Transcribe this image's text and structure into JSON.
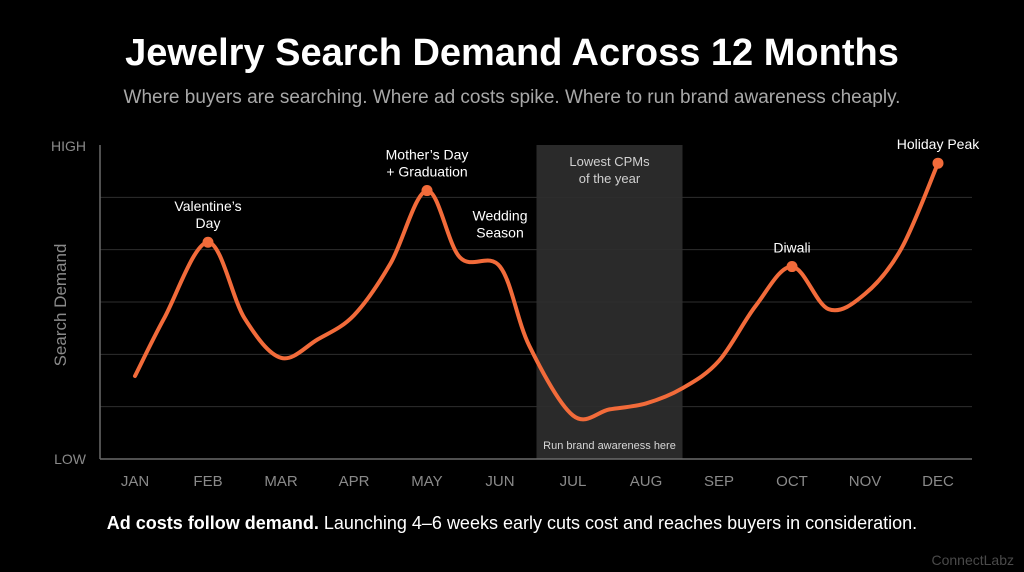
{
  "title": "Jewelry Search Demand Across 12 Months",
  "subtitle": "Where buyers are searching. Where ad costs spike. Where to run brand awareness cheaply.",
  "footnote": {
    "bold": "Ad costs follow demand.",
    "rest": " Launching 4–6 weeks early cuts cost and reaches buyers in consideration."
  },
  "watermark": "ConnectLabz",
  "colors": {
    "background": "#000000",
    "line": "#f26b3a",
    "grid": "#2e2e2e",
    "axis_text": "#8a8a8a",
    "band": "#2a2a2a"
  },
  "chart_data": {
    "type": "line",
    "title": "Jewelry Search Demand Across 12 Months",
    "subtitle": "Where buyers are searching. Where ad costs spike. Where to run brand awareness cheaply.",
    "ylabel": "Search Demand",
    "y_tick_labels": [
      "HIGH",
      "LOW"
    ],
    "ylim": [
      0,
      100
    ],
    "categories": [
      "JAN",
      "FEB",
      "MAR",
      "APR",
      "MAY",
      "JUN",
      "JUL",
      "AUG",
      "SEP",
      "OCT",
      "NOV",
      "DEC"
    ],
    "grid": true,
    "series": [
      {
        "points": [
          [
            0,
            25
          ],
          [
            0.4,
            44
          ],
          [
            1,
            69
          ],
          [
            1.5,
            44
          ],
          [
            2,
            31
          ],
          [
            2.5,
            37
          ],
          [
            3,
            45
          ],
          [
            3.5,
            62
          ],
          [
            4,
            86
          ],
          [
            4.45,
            64
          ],
          [
            5,
            61
          ],
          [
            5.4,
            35
          ],
          [
            6,
            12
          ],
          [
            6.5,
            14
          ],
          [
            7,
            16
          ],
          [
            7.5,
            21
          ],
          [
            8,
            30
          ],
          [
            8.5,
            48
          ],
          [
            9,
            61
          ],
          [
            9.5,
            47
          ],
          [
            10,
            52
          ],
          [
            10.5,
            67
          ],
          [
            11,
            95
          ]
        ]
      }
    ],
    "markers": [
      {
        "x": 1,
        "y": 69,
        "label_lines": [
          "Valentine’s",
          "Day"
        ]
      },
      {
        "x": 4,
        "y": 86,
        "label_lines": [
          "Mother’s Day",
          "+ Graduation"
        ]
      },
      {
        "x": 9,
        "y": 61,
        "label_lines": [
          "Diwali"
        ]
      },
      {
        "x": 11,
        "y": 95,
        "label_lines": [
          "Holiday Peak"
        ]
      }
    ],
    "annotations": [
      {
        "x": 5,
        "y": 68,
        "label_lines": [
          "Wedding",
          "Season"
        ]
      }
    ],
    "shaded_region": {
      "x_start": 5.5,
      "x_end": 7.5,
      "top_label_lines": [
        "Lowest CPMs",
        "of the year"
      ],
      "bottom_label": "Run brand awareness here"
    }
  }
}
